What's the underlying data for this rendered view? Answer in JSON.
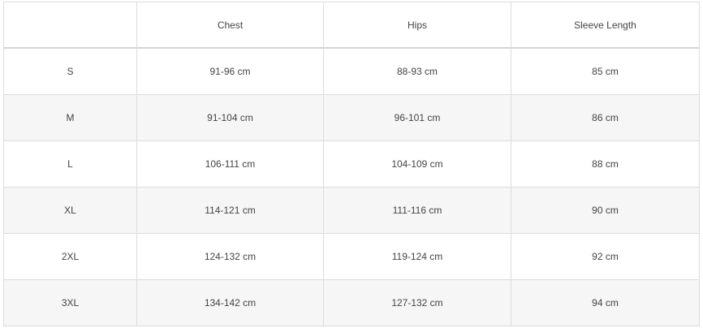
{
  "headers": [
    "",
    "Chest",
    "Hips",
    "Sleeve Length"
  ],
  "rows": [
    {
      "size": "S",
      "chest": "91-96 cm",
      "hips": "88-93 cm",
      "sleeve": "85 cm"
    },
    {
      "size": "M",
      "chest": "91-104 cm",
      "hips": "96-101 cm",
      "sleeve": "86 cm"
    },
    {
      "size": "L",
      "chest": "106-111 cm",
      "hips": "104-109 cm",
      "sleeve": "88 cm"
    },
    {
      "size": "XL",
      "chest": "114-121 cm",
      "hips": "111-116 cm",
      "sleeve": "90 cm"
    },
    {
      "size": "2XL",
      "chest": "124-132 cm",
      "hips": "119-124 cm",
      "sleeve": "92 cm"
    },
    {
      "size": "3XL",
      "chest": "134-142 cm",
      "hips": "127-132 cm",
      "sleeve": "94 cm"
    }
  ]
}
